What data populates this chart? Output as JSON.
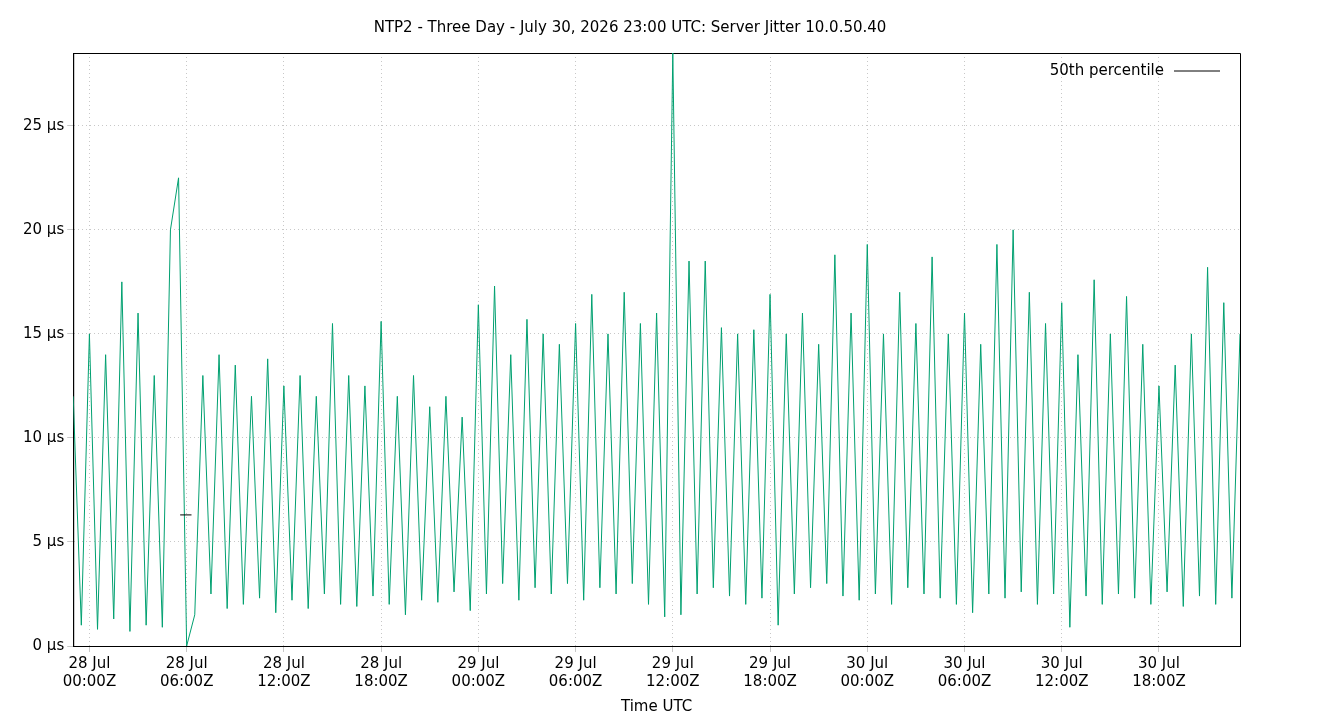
{
  "chart_data": {
    "type": "line",
    "title": "NTP2 - Three Day - July 30, 2026 23:00 UTC: Server Jitter 10.0.50.40",
    "xlabel": "Time UTC",
    "xlim": [
      "2026-07-27T23:00",
      "2026-07-30T23:00"
    ],
    "xticks": [
      {
        "value": "2026-07-28T00:00",
        "label": "28 Jul\n00:00Z"
      },
      {
        "value": "2026-07-28T06:00",
        "label": "28 Jul\n06:00Z"
      },
      {
        "value": "2026-07-28T12:00",
        "label": "28 Jul\n12:00Z"
      },
      {
        "value": "2026-07-28T18:00",
        "label": "28 Jul\n18:00Z"
      },
      {
        "value": "2026-07-29T00:00",
        "label": "29 Jul\n00:00Z"
      },
      {
        "value": "2026-07-29T06:00",
        "label": "29 Jul\n06:00Z"
      },
      {
        "value": "2026-07-29T12:00",
        "label": "29 Jul\n12:00Z"
      },
      {
        "value": "2026-07-29T18:00",
        "label": "29 Jul\n18:00Z"
      },
      {
        "value": "2026-07-30T00:00",
        "label": "30 Jul\n00:00Z"
      },
      {
        "value": "2026-07-30T06:00",
        "label": "30 Jul\n06:00Z"
      },
      {
        "value": "2026-07-30T12:00",
        "label": "30 Jul\n12:00Z"
      },
      {
        "value": "2026-07-30T18:00",
        "label": "30 Jul\n18:00Z"
      }
    ],
    "ylim": [
      0,
      28.5
    ],
    "yticks": [
      {
        "value": 0,
        "label": "0 µs"
      },
      {
        "value": 5,
        "label": "5 µs"
      },
      {
        "value": 10,
        "label": "10 µs"
      },
      {
        "value": 15,
        "label": "15 µs"
      },
      {
        "value": 20,
        "label": "20 µs"
      },
      {
        "value": 25,
        "label": "25 µs"
      }
    ],
    "grid": true,
    "legend": "top right",
    "marker": "none",
    "line_style": "solid",
    "series": [
      {
        "color": "#00a070",
        "x": [
          "2026-07-27T23:00",
          "2026-07-27T23:30",
          "2026-07-28T00:00",
          "2026-07-28T00:30",
          "2026-07-28T01:00",
          "2026-07-28T01:30",
          "2026-07-28T02:00",
          "2026-07-28T02:30",
          "2026-07-28T03:00",
          "2026-07-28T03:30",
          "2026-07-28T04:00",
          "2026-07-28T04:30",
          "2026-07-28T05:00",
          "2026-07-28T05:30",
          "2026-07-28T06:00",
          "2026-07-28T06:30",
          "2026-07-28T07:00",
          "2026-07-28T07:30",
          "2026-07-28T08:00",
          "2026-07-28T08:30",
          "2026-07-28T09:00",
          "2026-07-28T09:30",
          "2026-07-28T10:00",
          "2026-07-28T10:30",
          "2026-07-28T11:00",
          "2026-07-28T11:30",
          "2026-07-28T12:00",
          "2026-07-28T12:30",
          "2026-07-28T13:00",
          "2026-07-28T13:30",
          "2026-07-28T14:00",
          "2026-07-28T14:30",
          "2026-07-28T15:00",
          "2026-07-28T15:30",
          "2026-07-28T16:00",
          "2026-07-28T16:30",
          "2026-07-28T17:00",
          "2026-07-28T17:30",
          "2026-07-28T18:00",
          "2026-07-28T18:30",
          "2026-07-28T19:00",
          "2026-07-28T19:30",
          "2026-07-28T20:00",
          "2026-07-28T20:30",
          "2026-07-28T21:00",
          "2026-07-28T21:30",
          "2026-07-28T22:00",
          "2026-07-28T22:30",
          "2026-07-28T23:00",
          "2026-07-28T23:30",
          "2026-07-29T00:00",
          "2026-07-29T00:30",
          "2026-07-29T01:00",
          "2026-07-29T01:30",
          "2026-07-29T02:00",
          "2026-07-29T02:30",
          "2026-07-29T03:00",
          "2026-07-29T03:30",
          "2026-07-29T04:00",
          "2026-07-29T04:30",
          "2026-07-29T05:00",
          "2026-07-29T05:30",
          "2026-07-29T06:00",
          "2026-07-29T06:30",
          "2026-07-29T07:00",
          "2026-07-29T07:30",
          "2026-07-29T08:00",
          "2026-07-29T08:30",
          "2026-07-29T09:00",
          "2026-07-29T09:30",
          "2026-07-29T10:00",
          "2026-07-29T10:30",
          "2026-07-29T11:00",
          "2026-07-29T11:30",
          "2026-07-29T12:00",
          "2026-07-29T12:30",
          "2026-07-29T13:00",
          "2026-07-29T13:30",
          "2026-07-29T14:00",
          "2026-07-29T14:30",
          "2026-07-29T15:00",
          "2026-07-29T15:30",
          "2026-07-29T16:00",
          "2026-07-29T16:30",
          "2026-07-29T17:00",
          "2026-07-29T17:30",
          "2026-07-29T18:00",
          "2026-07-29T18:30",
          "2026-07-29T19:00",
          "2026-07-29T19:30",
          "2026-07-29T20:00",
          "2026-07-29T20:30",
          "2026-07-29T21:00",
          "2026-07-29T21:30",
          "2026-07-29T22:00",
          "2026-07-29T22:30",
          "2026-07-29T23:00",
          "2026-07-29T23:30",
          "2026-07-30T00:00",
          "2026-07-30T00:30",
          "2026-07-30T01:00",
          "2026-07-30T01:30",
          "2026-07-30T02:00",
          "2026-07-30T02:30",
          "2026-07-30T03:00",
          "2026-07-30T03:30",
          "2026-07-30T04:00",
          "2026-07-30T04:30",
          "2026-07-30T05:00",
          "2026-07-30T05:30",
          "2026-07-30T06:00",
          "2026-07-30T06:30",
          "2026-07-30T07:00",
          "2026-07-30T07:30",
          "2026-07-30T08:00",
          "2026-07-30T08:30",
          "2026-07-30T09:00",
          "2026-07-30T09:30",
          "2026-07-30T10:00",
          "2026-07-30T10:30",
          "2026-07-30T11:00",
          "2026-07-30T11:30",
          "2026-07-30T12:00",
          "2026-07-30T12:30",
          "2026-07-30T13:00",
          "2026-07-30T13:30",
          "2026-07-30T14:00",
          "2026-07-30T14:30",
          "2026-07-30T15:00",
          "2026-07-30T15:30",
          "2026-07-30T16:00",
          "2026-07-30T16:30",
          "2026-07-30T17:00",
          "2026-07-30T17:30",
          "2026-07-30T18:00",
          "2026-07-30T18:30",
          "2026-07-30T19:00",
          "2026-07-30T19:30",
          "2026-07-30T20:00",
          "2026-07-30T20:30",
          "2026-07-30T21:00",
          "2026-07-30T21:30",
          "2026-07-30T22:00",
          "2026-07-30T22:30",
          "2026-07-30T23:00"
        ],
        "values": [
          12,
          1.0,
          15,
          0.8,
          14,
          1.3,
          17.5,
          0.7,
          16,
          1.0,
          13,
          0.9,
          20,
          22.5,
          0,
          1.5,
          13,
          2.5,
          14,
          1.8,
          13.5,
          2.0,
          12,
          2.3,
          13.8,
          1.6,
          12.5,
          2.2,
          13,
          1.8,
          12,
          2.5,
          15.5,
          2.0,
          13,
          1.9,
          12.5,
          2.4,
          15.6,
          2.0,
          12,
          1.5,
          13,
          2.2,
          11.5,
          2.1,
          12,
          2.6,
          11,
          1.7,
          16.4,
          2.5,
          17.3,
          3.0,
          14,
          2.2,
          15.7,
          2.8,
          15,
          2.5,
          14.5,
          3.0,
          15.5,
          2.2,
          16.9,
          2.8,
          15,
          2.5,
          17,
          3.0,
          15.5,
          2.0,
          16,
          1.4,
          28.5,
          1.5,
          18.5,
          2.5,
          18.5,
          2.8,
          15.3,
          2.4,
          15,
          2.0,
          15.2,
          2.3,
          16.9,
          1.0,
          15,
          2.5,
          16,
          2.8,
          14.5,
          3.0,
          18.8,
          2.4,
          16,
          2.2,
          19.3,
          2.5,
          15,
          2.0,
          17,
          2.8,
          15.5,
          2.5,
          18.7,
          2.3,
          15,
          2.0,
          16,
          1.6,
          14.5,
          2.5,
          19.3,
          2.3,
          20,
          2.6,
          17,
          2.0,
          15.5,
          2.5,
          16.5,
          0.9,
          14,
          2.4,
          17.6,
          2.0,
          15,
          2.5,
          16.8,
          2.3,
          14.5,
          2.0,
          12.5,
          2.6,
          13.5,
          1.9,
          15,
          2.4,
          18.2,
          2.0,
          16.5,
          2.3,
          15
        ]
      },
      {
        "name": "50th percentile",
        "color": "#000000",
        "x": [
          "2026-07-28T05:36",
          "2026-07-28T06:18"
        ],
        "values": [
          6.3,
          6.3
        ]
      }
    ]
  }
}
